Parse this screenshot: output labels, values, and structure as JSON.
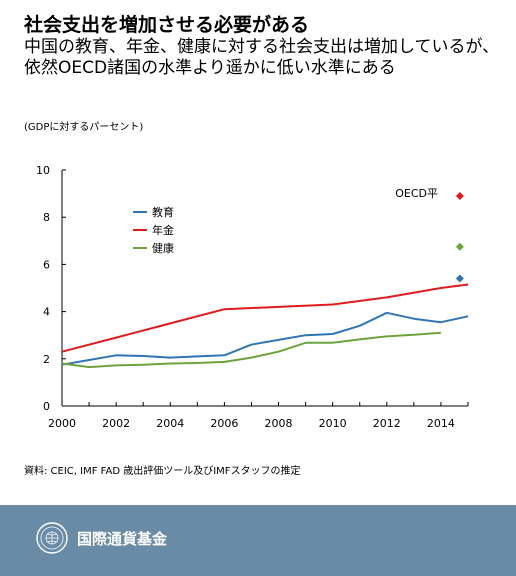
{
  "header": {
    "title": "社会支出を増加させる必要がある",
    "subtitle": "中国の教育、年金、健康に対する社会支出は増加しているが、依然OECD諸国の水準より遥かに低い水準にある",
    "unit": "(GDPに対するパーセント)"
  },
  "chart_data": {
    "type": "line",
    "title": "社会支出を増加させる必要がある",
    "ylabel": "(GDPに対するパーセント)",
    "xlim": [
      2000,
      2015
    ],
    "ylim": [
      0,
      10
    ],
    "x_ticks": [
      2000,
      2002,
      2004,
      2006,
      2008,
      2010,
      2012,
      2014
    ],
    "y_ticks": [
      0,
      2,
      4,
      6,
      8,
      10
    ],
    "grid": false,
    "legend": "top-left",
    "series": [
      {
        "name": "教育",
        "color": "#2f75b5",
        "x": [
          2000,
          2001,
          2002,
          2003,
          2004,
          2005,
          2006,
          2007,
          2008,
          2009,
          2010,
          2011,
          2012,
          2013,
          2014,
          2015
        ],
        "values": [
          1.75,
          1.95,
          2.15,
          2.12,
          2.05,
          2.1,
          2.15,
          2.6,
          2.8,
          3.0,
          3.05,
          3.4,
          3.95,
          3.7,
          3.55,
          3.8
        ]
      },
      {
        "name": "年金",
        "color": "#e11b1b",
        "x": [
          2000,
          2002,
          2004,
          2006,
          2008,
          2010,
          2012,
          2014,
          2015
        ],
        "values": [
          2.3,
          2.9,
          3.5,
          4.1,
          4.2,
          4.3,
          4.6,
          5.0,
          5.15
        ]
      },
      {
        "name": "健康",
        "color": "#6ca33a",
        "x": [
          2000,
          2001,
          2002,
          2003,
          2004,
          2005,
          2006,
          2007,
          2008,
          2009,
          2010,
          2011,
          2012,
          2013,
          2014
        ],
        "values": [
          1.8,
          1.65,
          1.72,
          1.75,
          1.8,
          1.82,
          1.87,
          2.05,
          2.3,
          2.68,
          2.68,
          2.82,
          2.95,
          3.02,
          3.1
        ]
      }
    ],
    "oecd": {
      "label": "OECD平",
      "x": 2014.7,
      "points": [
        {
          "series": "年金",
          "value": 8.9,
          "color": "#e11b1b"
        },
        {
          "series": "健康",
          "value": 6.75,
          "color": "#6ca33a"
        },
        {
          "series": "教育",
          "value": 5.4,
          "color": "#2f75b5"
        }
      ]
    }
  },
  "source": "資料: CEIC, IMF FAD 歳出評価ツール及びIMFスタッフの推定",
  "footer": {
    "org": "国際通貨基金",
    "seal_icon": "imf-seal-icon"
  }
}
